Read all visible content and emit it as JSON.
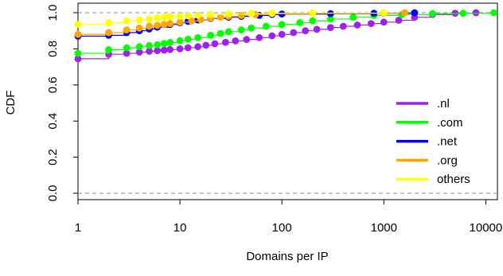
{
  "chart_data": {
    "type": "line",
    "xlabel": "Domains per IP",
    "ylabel": "CDF",
    "x_scale": "log",
    "xlim": [
      1,
      13000
    ],
    "ylim": [
      0,
      1
    ],
    "x_ticks": [
      1,
      10,
      100,
      1000,
      10000
    ],
    "x_tick_labels": [
      "1",
      "10",
      "100",
      "1000",
      "10000"
    ],
    "y_ticks": [
      0,
      0.2,
      0.4,
      0.6,
      0.8,
      1
    ],
    "y_tick_labels": [
      "0.0",
      "0.2",
      "0.4",
      "0.6",
      "0.8",
      "1.0"
    ],
    "reference_lines": [
      0,
      1
    ],
    "legend_position": "bottom-right",
    "series": [
      {
        "name": ".nl",
        "color": "#a020f0",
        "points": [
          [
            1,
            0.745
          ],
          [
            2,
            0.77
          ],
          [
            3,
            0.775
          ],
          [
            4,
            0.782
          ],
          [
            5,
            0.787
          ],
          [
            6,
            0.79
          ],
          [
            7,
            0.793
          ],
          [
            8,
            0.796
          ],
          [
            10,
            0.8
          ],
          [
            12,
            0.806
          ],
          [
            15,
            0.812
          ],
          [
            18,
            0.82
          ],
          [
            22,
            0.828
          ],
          [
            28,
            0.836
          ],
          [
            35,
            0.844
          ],
          [
            45,
            0.852
          ],
          [
            60,
            0.862
          ],
          [
            80,
            0.872
          ],
          [
            100,
            0.88
          ],
          [
            130,
            0.89
          ],
          [
            170,
            0.9
          ],
          [
            220,
            0.908
          ],
          [
            300,
            0.918
          ],
          [
            400,
            0.925
          ],
          [
            550,
            0.932
          ],
          [
            750,
            0.94
          ],
          [
            1000,
            0.948
          ],
          [
            1400,
            0.958
          ],
          [
            2000,
            0.975
          ],
          [
            3000,
            0.99
          ],
          [
            5000,
            0.997
          ],
          [
            8000,
            1.0
          ]
        ]
      },
      {
        "name": ".com",
        "color": "#00ff00",
        "points": [
          [
            1,
            0.775
          ],
          [
            2,
            0.795
          ],
          [
            3,
            0.805
          ],
          [
            4,
            0.812
          ],
          [
            5,
            0.818
          ],
          [
            6,
            0.823
          ],
          [
            7,
            0.83
          ],
          [
            8,
            0.835
          ],
          [
            10,
            0.845
          ],
          [
            12,
            0.853
          ],
          [
            15,
            0.862
          ],
          [
            20,
            0.875
          ],
          [
            25,
            0.885
          ],
          [
            30,
            0.895
          ],
          [
            40,
            0.905
          ],
          [
            50,
            0.915
          ],
          [
            70,
            0.925
          ],
          [
            100,
            0.935
          ],
          [
            150,
            0.945
          ],
          [
            200,
            0.955
          ],
          [
            300,
            0.965
          ],
          [
            500,
            0.975
          ],
          [
            800,
            0.985
          ],
          [
            1500,
            0.99
          ],
          [
            3000,
            0.995
          ],
          [
            6000,
            0.997
          ],
          [
            12000,
            1.0
          ]
        ]
      },
      {
        "name": ".net",
        "color": "#0000ff",
        "points": [
          [
            1,
            0.87
          ],
          [
            2,
            0.875
          ],
          [
            3,
            0.89
          ],
          [
            4,
            0.9
          ],
          [
            5,
            0.91
          ],
          [
            6,
            0.92
          ],
          [
            8,
            0.935
          ],
          [
            10,
            0.945
          ],
          [
            12,
            0.952
          ],
          [
            15,
            0.96
          ],
          [
            20,
            0.968
          ],
          [
            30,
            0.975
          ],
          [
            40,
            0.98
          ],
          [
            60,
            0.985
          ],
          [
            80,
            0.99
          ],
          [
            100,
            0.993
          ],
          [
            300,
            0.995
          ],
          [
            800,
            0.997
          ],
          [
            2000,
            1.0
          ]
        ]
      },
      {
        "name": ".org",
        "color": "#ffa500",
        "points": [
          [
            1,
            0.88
          ],
          [
            2,
            0.89
          ],
          [
            3,
            0.905
          ],
          [
            4,
            0.915
          ],
          [
            5,
            0.925
          ],
          [
            6,
            0.93
          ],
          [
            7,
            0.935
          ],
          [
            8,
            0.94
          ],
          [
            10,
            0.948
          ],
          [
            13,
            0.955
          ],
          [
            16,
            0.962
          ],
          [
            20,
            0.97
          ],
          [
            25,
            0.975
          ],
          [
            30,
            0.98
          ],
          [
            40,
            0.985
          ],
          [
            55,
            0.99
          ],
          [
            80,
            0.995
          ],
          [
            200,
            0.997
          ],
          [
            1000,
            0.998
          ],
          [
            1600,
            1.0
          ]
        ]
      },
      {
        "name": "others",
        "color": "#ffff00",
        "points": [
          [
            1,
            0.935
          ],
          [
            2,
            0.945
          ],
          [
            3,
            0.955
          ],
          [
            4,
            0.96
          ],
          [
            5,
            0.965
          ],
          [
            6,
            0.97
          ],
          [
            7,
            0.975
          ],
          [
            8,
            0.978
          ],
          [
            10,
            0.98
          ],
          [
            12,
            0.983
          ],
          [
            15,
            0.986
          ],
          [
            20,
            0.99
          ],
          [
            30,
            0.993
          ],
          [
            50,
            0.995
          ],
          [
            80,
            0.997
          ],
          [
            200,
            0.998
          ],
          [
            1000,
            1.0
          ]
        ]
      }
    ]
  }
}
